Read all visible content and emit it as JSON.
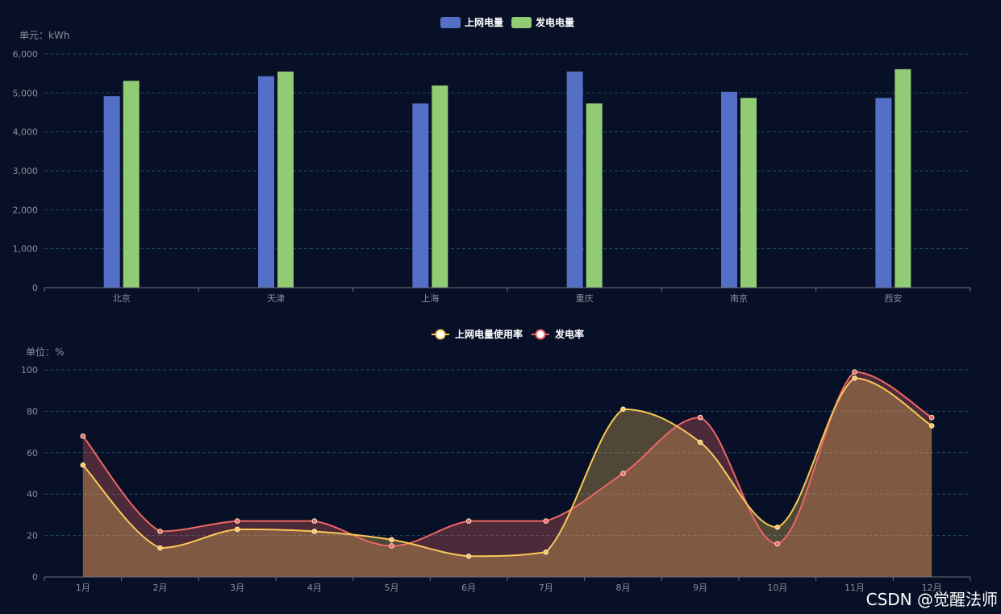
{
  "chart_data": [
    {
      "type": "bar",
      "unit_label": "单元：kWh",
      "categories": [
        "北京",
        "天津",
        "上海",
        "重庆",
        "南京",
        "西安"
      ],
      "series": [
        {
          "name": "上网电量",
          "color": "#5470c6",
          "values": [
            4920,
            5430,
            4730,
            5550,
            5030,
            4870
          ]
        },
        {
          "name": "发电电量",
          "color": "#91cc75",
          "values": [
            5310,
            5550,
            5190,
            4730,
            4870,
            5610
          ]
        }
      ],
      "ylim": [
        0,
        6000
      ],
      "yticks": [
        "0",
        "1,000",
        "2,000",
        "3,000",
        "4,000",
        "5,000",
        "6,000"
      ],
      "grid": true,
      "legend": "top-center"
    },
    {
      "type": "area",
      "unit_label": "单位：%",
      "categories": [
        "1月",
        "2月",
        "3月",
        "4月",
        "5月",
        "6月",
        "7月",
        "8月",
        "9月",
        "10月",
        "11月",
        "12月"
      ],
      "series": [
        {
          "name": "上网电量使用率",
          "color": "#fac858",
          "values": [
            54,
            14,
            23,
            22,
            18,
            10,
            12,
            81,
            65,
            24,
            96,
            73
          ]
        },
        {
          "name": "发电率",
          "color": "#ee6666",
          "values": [
            68,
            22,
            27,
            27,
            15,
            27,
            27,
            50,
            77,
            16,
            99,
            77
          ]
        }
      ],
      "ylim": [
        0,
        100
      ],
      "yticks": [
        "0",
        "20",
        "40",
        "60",
        "80",
        "100"
      ],
      "smooth": true,
      "grid": true,
      "legend": "top-center"
    }
  ],
  "watermark": "CSDN @觉醒法师"
}
